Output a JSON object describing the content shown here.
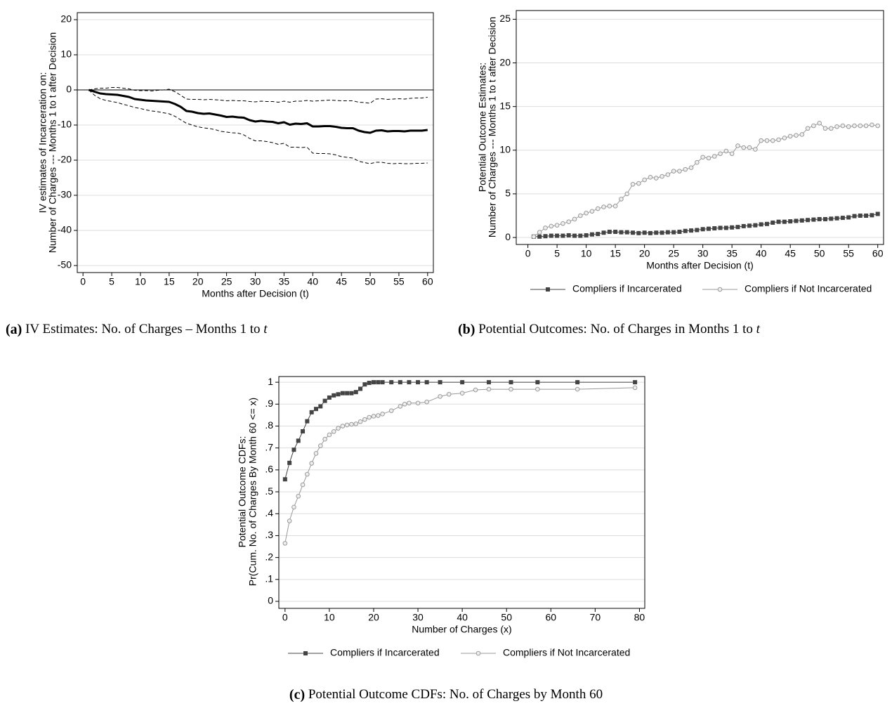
{
  "chart_data": [
    {
      "type": "line",
      "panel": "a",
      "ylabel": [
        "IV estimates of Incarceration on:",
        "Number of Charges --- Months 1 to t after Decision"
      ],
      "xlabel": "Months after Decision (t)",
      "caption": {
        "label": "(a)",
        "text": "IV Estimates: No. of Charges – Months 1 to",
        "var": "t"
      },
      "x": [
        1,
        2,
        3,
        4,
        5,
        6,
        7,
        8,
        9,
        10,
        11,
        12,
        13,
        14,
        15,
        16,
        17,
        18,
        19,
        20,
        21,
        22,
        23,
        24,
        25,
        26,
        27,
        28,
        29,
        30,
        31,
        32,
        33,
        34,
        35,
        36,
        37,
        38,
        39,
        40,
        41,
        42,
        43,
        44,
        45,
        46,
        47,
        48,
        49,
        50,
        51,
        52,
        53,
        54,
        55,
        56,
        57,
        58,
        59,
        60
      ],
      "series": [
        {
          "color": "#000000",
          "width": 3,
          "dash": false,
          "marker": "none",
          "values": [
            0,
            -0.5,
            -1,
            -1.2,
            -1.3,
            -1.4,
            -1.7,
            -2,
            -2.6,
            -2.8,
            -3,
            -3.1,
            -3.2,
            -3.3,
            -3.4,
            -4,
            -4.8,
            -6,
            -6.2,
            -6.6,
            -6.8,
            -6.7,
            -7,
            -7.3,
            -7.7,
            -7.6,
            -7.8,
            -7.9,
            -8.6,
            -9,
            -8.8,
            -9,
            -9.1,
            -9.5,
            -9.2,
            -9.9,
            -9.6,
            -9.7,
            -9.5,
            -10.4,
            -10.4,
            -10.3,
            -10.3,
            -10.5,
            -10.8,
            -10.9,
            -10.9,
            -11.6,
            -12,
            -12.2,
            -11.6,
            -11.5,
            -11.8,
            -11.7,
            -11.7,
            -11.8,
            -11.6,
            -11.6,
            -11.6,
            -11.4
          ]
        },
        {
          "color": "#000000",
          "width": 1,
          "dash": true,
          "marker": "none",
          "values": [
            0,
            0.3,
            0.5,
            0.5,
            0.7,
            0.7,
            0.5,
            0.3,
            -0.1,
            -0.2,
            -0.2,
            -0.3,
            -0.1,
            0,
            0.2,
            -0.5,
            -1.5,
            -2.6,
            -2.7,
            -2.7,
            -2.8,
            -2.7,
            -2.8,
            -2.9,
            -3.1,
            -3,
            -3.1,
            -3.1,
            -3.3,
            -3.4,
            -3.2,
            -3.3,
            -3.3,
            -3.5,
            -3.2,
            -3.5,
            -3.2,
            -3.2,
            -3,
            -3.2,
            -3.1,
            -3,
            -2.9,
            -3,
            -3.1,
            -3.1,
            -3.1,
            -3.5,
            -3.6,
            -3.8,
            -2.6,
            -2.5,
            -2.7,
            -2.6,
            -2.5,
            -2.6,
            -2.4,
            -2.3,
            -2.3,
            -2.1
          ]
        },
        {
          "color": "#000000",
          "width": 1,
          "dash": true,
          "marker": "none",
          "values": [
            0,
            -1.5,
            -2.5,
            -3,
            -3.3,
            -3.6,
            -4.1,
            -4.5,
            -5,
            -5.3,
            -5.7,
            -6,
            -6.2,
            -6.5,
            -6.8,
            -7.5,
            -8.5,
            -9.5,
            -10,
            -10.5,
            -10.8,
            -11,
            -11.3,
            -11.8,
            -12,
            -12.2,
            -12.3,
            -12.8,
            -13.8,
            -14.5,
            -14.5,
            -14.7,
            -15,
            -15.5,
            -15.2,
            -16.3,
            -16.3,
            -16.4,
            -16.3,
            -18,
            -18.1,
            -18.1,
            -18.2,
            -18.5,
            -19,
            -19.2,
            -19.4,
            -20.3,
            -20.7,
            -21,
            -20.6,
            -20.6,
            -20.9,
            -21,
            -20.9,
            -21,
            -21,
            -20.9,
            -20.9,
            -20.8
          ]
        }
      ],
      "reference_line": 0,
      "xlim": [
        -1,
        61
      ],
      "ylim": [
        -52,
        22
      ],
      "xticks": [
        0,
        5,
        10,
        15,
        20,
        25,
        30,
        35,
        40,
        45,
        50,
        55,
        60
      ],
      "yticks": [
        20,
        10,
        0,
        -10,
        -20,
        -30,
        -40,
        -50
      ],
      "grid": true
    },
    {
      "type": "line",
      "panel": "b",
      "ylabel": [
        "Potential Outcome Estimates:",
        "Number of Charges --- Months 1 to t after Decision"
      ],
      "xlabel": "Months after Decision (t)",
      "caption": {
        "label": "(b)",
        "text": "Potential Outcomes: No. of Charges in Months 1 to",
        "var": "t"
      },
      "x": [
        1,
        2,
        3,
        4,
        5,
        6,
        7,
        8,
        9,
        10,
        11,
        12,
        13,
        14,
        15,
        16,
        17,
        18,
        19,
        20,
        21,
        22,
        23,
        24,
        25,
        26,
        27,
        28,
        29,
        30,
        31,
        32,
        33,
        34,
        35,
        36,
        37,
        38,
        39,
        40,
        41,
        42,
        43,
        44,
        45,
        46,
        47,
        48,
        49,
        50,
        51,
        52,
        53,
        54,
        55,
        56,
        57,
        58,
        59,
        60
      ],
      "series": [
        {
          "name": "Compliers if Incarcerated",
          "color": "#444444",
          "width": 1,
          "dash": false,
          "marker": "square",
          "values": [
            0.1,
            0.1,
            0.15,
            0.2,
            0.2,
            0.2,
            0.25,
            0.2,
            0.2,
            0.25,
            0.35,
            0.4,
            0.55,
            0.65,
            0.65,
            0.6,
            0.6,
            0.55,
            0.5,
            0.55,
            0.5,
            0.55,
            0.55,
            0.6,
            0.6,
            0.65,
            0.75,
            0.8,
            0.85,
            0.95,
            1.0,
            1.05,
            1.1,
            1.1,
            1.15,
            1.2,
            1.3,
            1.35,
            1.4,
            1.5,
            1.55,
            1.7,
            1.8,
            1.8,
            1.85,
            1.9,
            1.95,
            2.0,
            2.05,
            2.1,
            2.1,
            2.15,
            2.2,
            2.25,
            2.3,
            2.45,
            2.5,
            2.5,
            2.55,
            2.7
          ]
        },
        {
          "name": "Compliers if Not Incarcerated",
          "color": "#999999",
          "width": 1,
          "dash": false,
          "marker": "circle",
          "values": [
            0.1,
            0.6,
            1.1,
            1.3,
            1.4,
            1.6,
            1.8,
            2.1,
            2.5,
            2.8,
            3.0,
            3.3,
            3.5,
            3.6,
            3.6,
            4.4,
            5.0,
            6.1,
            6.2,
            6.6,
            6.9,
            6.8,
            7.0,
            7.2,
            7.6,
            7.6,
            7.8,
            8.0,
            8.6,
            9.2,
            9.1,
            9.3,
            9.6,
            9.9,
            9.6,
            10.5,
            10.3,
            10.3,
            10.1,
            11.1,
            11.1,
            11.1,
            11.2,
            11.4,
            11.6,
            11.7,
            11.8,
            12.5,
            12.8,
            13.1,
            12.5,
            12.5,
            12.7,
            12.8,
            12.7,
            12.8,
            12.8,
            12.8,
            12.9,
            12.8
          ]
        }
      ],
      "legend": "bottom",
      "xlim": [
        -2,
        61
      ],
      "ylim": [
        -0.8,
        26
      ],
      "xticks": [
        0,
        5,
        10,
        15,
        20,
        25,
        30,
        35,
        40,
        45,
        50,
        55,
        60
      ],
      "yticks": [
        0,
        5,
        10,
        15,
        20,
        25
      ],
      "grid": true
    },
    {
      "type": "line",
      "panel": "c",
      "ylabel": [
        "Potential Outcome CDFs:",
        "Pr(Cum. No. of Charges By Month 60 <= x)"
      ],
      "xlabel": "Number of Charges (x)",
      "caption": {
        "label": "(c)",
        "text": "Potential Outcome CDFs: No. of Charges by Month 60",
        "var": null
      },
      "series": [
        {
          "name": "Compliers if Incarcerated",
          "color": "#444444",
          "width": 1,
          "dash": false,
          "marker": "square",
          "x": [
            0,
            1,
            2,
            3,
            4,
            5,
            6,
            7,
            8,
            9,
            10,
            11,
            12,
            13,
            14,
            15,
            16,
            17,
            18,
            19,
            20,
            21,
            22,
            24,
            26,
            28,
            30,
            32,
            35,
            40,
            46,
            51,
            57,
            66,
            79
          ],
          "values": [
            0.557,
            0.632,
            0.692,
            0.733,
            0.776,
            0.822,
            0.863,
            0.878,
            0.89,
            0.915,
            0.93,
            0.94,
            0.945,
            0.95,
            0.95,
            0.95,
            0.955,
            0.97,
            0.99,
            0.997,
            1,
            1,
            1,
            1,
            1,
            1,
            1,
            1,
            1,
            1,
            1,
            1,
            1,
            1,
            1
          ]
        },
        {
          "name": "Compliers if Not Incarcerated",
          "color": "#999999",
          "width": 1,
          "dash": false,
          "marker": "circle",
          "x": [
            0,
            1,
            2,
            3,
            4,
            5,
            6,
            7,
            8,
            9,
            10,
            11,
            12,
            13,
            14,
            15,
            16,
            17,
            18,
            19,
            20,
            21,
            22,
            24,
            26,
            27,
            28,
            30,
            32,
            35,
            37,
            40,
            43,
            46,
            51,
            57,
            66,
            79
          ],
          "values": [
            0.265,
            0.367,
            0.43,
            0.48,
            0.532,
            0.58,
            0.63,
            0.675,
            0.71,
            0.74,
            0.76,
            0.775,
            0.79,
            0.8,
            0.805,
            0.808,
            0.81,
            0.82,
            0.83,
            0.84,
            0.845,
            0.848,
            0.855,
            0.87,
            0.89,
            0.9,
            0.905,
            0.905,
            0.91,
            0.935,
            0.945,
            0.95,
            0.965,
            0.968,
            0.968,
            0.968,
            0.968,
            0.975
          ]
        }
      ],
      "legend": "bottom",
      "xlim": [
        -1.4,
        81.2
      ],
      "ylim": [
        -0.032,
        1.026
      ],
      "xticks": [
        0,
        10,
        20,
        30,
        40,
        50,
        60,
        70,
        80
      ],
      "yticks": [
        0,
        {
          "value": 0.1,
          "label": ".1"
        },
        {
          "value": 0.2,
          "label": ".2"
        },
        {
          "value": 0.3,
          "label": ".3"
        },
        {
          "value": 0.4,
          "label": ".4"
        },
        {
          "value": 0.5,
          "label": ".5"
        },
        {
          "value": 0.6,
          "label": ".6"
        },
        {
          "value": 0.7,
          "label": ".7"
        },
        {
          "value": 0.8,
          "label": ".8"
        },
        {
          "value": 0.9,
          "label": ".9"
        },
        1
      ],
      "grid": true
    }
  ]
}
